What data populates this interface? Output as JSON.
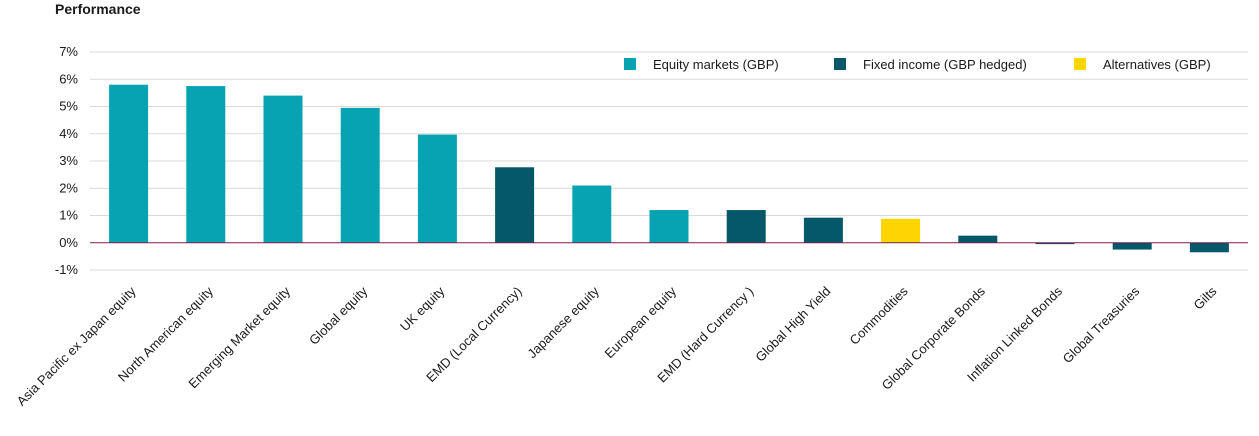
{
  "chart_data": {
    "type": "bar",
    "title": "Performance",
    "xlabel": "",
    "ylabel": "",
    "ylim": [
      -1,
      7
    ],
    "yticks": [
      -1,
      0,
      1,
      2,
      3,
      4,
      5,
      6,
      7
    ],
    "ytick_labels": [
      "-1%",
      "0%",
      "1%",
      "2%",
      "3%",
      "4%",
      "5%",
      "6%",
      "7%"
    ],
    "grid": true,
    "legend_position": "top-right",
    "groups": [
      {
        "name": "Equity markets (GBP)",
        "color": "#07A3B3"
      },
      {
        "name": "Fixed income (GBP hedged)",
        "color": "#05576A"
      },
      {
        "name": "Alternatives (GBP)",
        "color": "#FFD500"
      }
    ],
    "categories": [
      "Asia Pacific ex Japan equity",
      "North American equity",
      "Emerging Market equity",
      "Global equity",
      "UK equity",
      "EMD (Local Currency)",
      "Japanese equity",
      "European equity",
      "EMD (Hard Currency )",
      "Global High Yield",
      "Commodities",
      "Global Corporate Bonds",
      "Inflation Linked Bonds",
      "Global Treasuries",
      "Gilts"
    ],
    "values": [
      5.8,
      5.75,
      5.4,
      4.95,
      3.97,
      2.77,
      2.1,
      1.2,
      1.2,
      0.92,
      0.88,
      0.26,
      -0.05,
      -0.25,
      -0.35
    ],
    "group_index": [
      0,
      0,
      0,
      0,
      0,
      1,
      0,
      0,
      1,
      1,
      2,
      1,
      1,
      1,
      1
    ]
  }
}
